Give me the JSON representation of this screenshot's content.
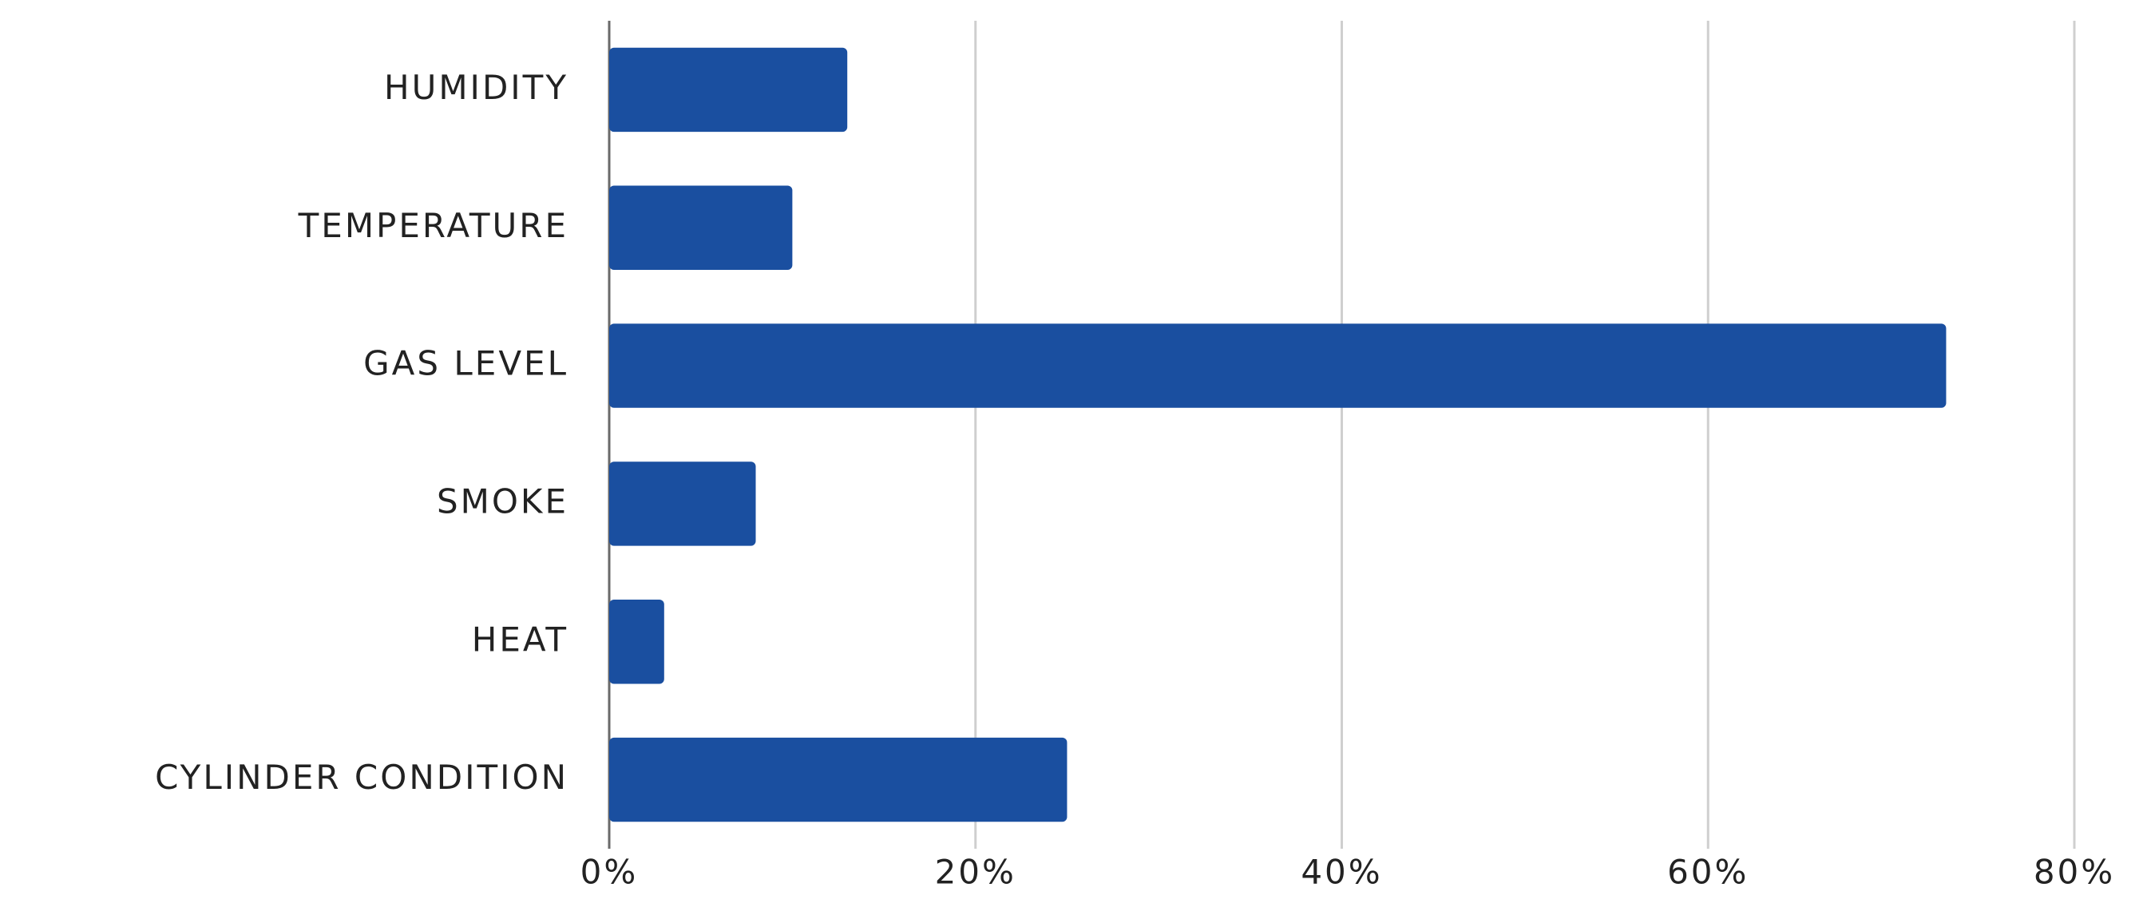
{
  "chart_data": {
    "type": "bar",
    "orientation": "horizontal",
    "categories": [
      "HUMIDITY",
      "TEMPERATURE",
      "GAS LEVEL",
      "SMOKE",
      "HEAT",
      "CYLINDER CONDITION"
    ],
    "values": [
      13,
      10,
      73,
      8,
      3,
      25
    ],
    "color": "#1a4fa0",
    "xlim": [
      0,
      80
    ],
    "xticks": [
      {
        "value": 0,
        "label": "0%"
      },
      {
        "value": 20,
        "label": "20%"
      },
      {
        "value": 40,
        "label": "40%"
      },
      {
        "value": 60,
        "label": "60%"
      },
      {
        "value": 80,
        "label": "80%"
      }
    ],
    "grid": true
  }
}
